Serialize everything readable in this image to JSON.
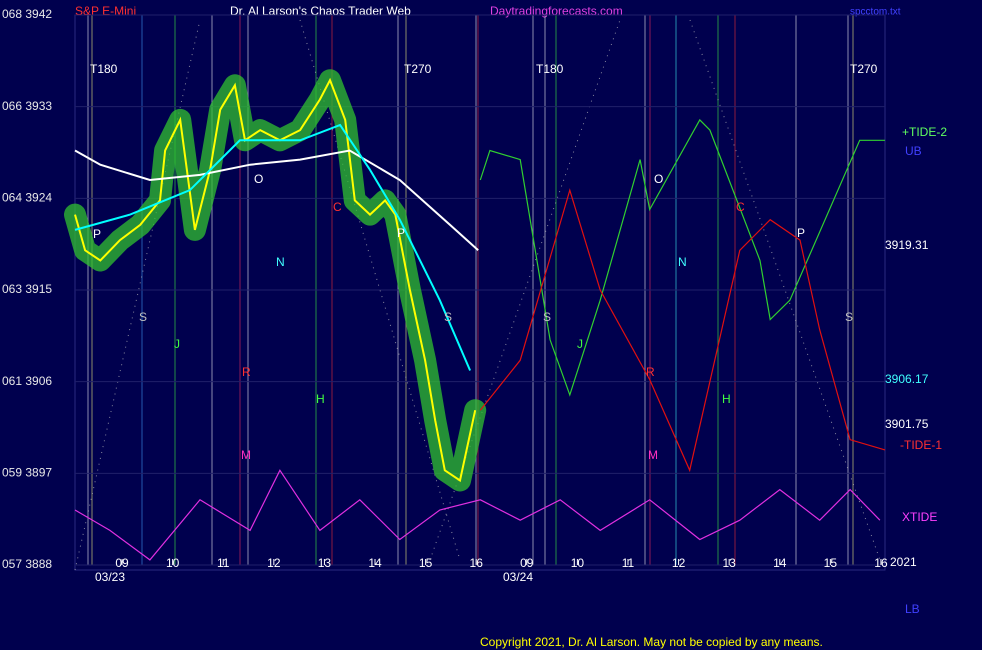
{
  "chart_data": {
    "type": "line",
    "title": "Dr. Al Larson's Chaos Trader Web",
    "instrument": "S&P E-Mini",
    "site": "Daytradingforecasts.com",
    "file": "spcctom.txt",
    "copyright": "Copyright 2021, Dr. Al Larson. May not be copied by any means.",
    "dates": [
      "03/23",
      "03/24"
    ],
    "xlim": [
      -0.93,
      15.08
    ],
    "ylim": [
      3888,
      3942
    ],
    "xticks": [
      {
        "value": 0,
        "label": "09"
      },
      {
        "value": 1,
        "label": "10"
      },
      {
        "value": 2,
        "label": "11"
      },
      {
        "value": 3,
        "label": "12"
      },
      {
        "value": 4,
        "label": "13"
      },
      {
        "value": 5,
        "label": "14"
      },
      {
        "value": 6,
        "label": "15"
      },
      {
        "value": 7,
        "label": "16"
      },
      {
        "value": 8,
        "label": "09"
      },
      {
        "value": 9,
        "label": "10"
      },
      {
        "value": 10,
        "label": "11"
      },
      {
        "value": 11,
        "label": "12"
      },
      {
        "value": 12,
        "label": "13"
      },
      {
        "value": 13,
        "label": "14"
      },
      {
        "value": 14,
        "label": "15"
      },
      {
        "value": 15,
        "label": "16"
      }
    ],
    "yticks": [
      {
        "value": 3942,
        "label": "068  3942"
      },
      {
        "value": 3933,
        "label": "066  3933"
      },
      {
        "value": 3924,
        "label": "064  3924"
      },
      {
        "value": 3915,
        "label": "063  3915"
      },
      {
        "value": 3906,
        "label": "061  3906"
      },
      {
        "value": 3897,
        "label": "059  3897"
      },
      {
        "value": 3888,
        "label": "057  3888"
      }
    ],
    "grid": true,
    "series": [
      {
        "name": "Price",
        "color": "#ffff00",
        "x": [
          -0.93,
          -0.73,
          -0.43,
          -0.04,
          0.36,
          0.75,
          0.85,
          1.15,
          1.44,
          1.74,
          1.94,
          2.23,
          2.43,
          2.73,
          3.12,
          3.52,
          3.91,
          4.11,
          4.41,
          4.6,
          4.9,
          5.2,
          5.4,
          5.69,
          5.99,
          6.19,
          6.38,
          6.68,
          6.98
        ],
        "values": [
          3922.4,
          3918.9,
          3917.9,
          3919.9,
          3921.4,
          3923.8,
          3928.7,
          3931.7,
          3920.9,
          3926.8,
          3932.7,
          3935.1,
          3929.7,
          3930.7,
          3929.7,
          3930.7,
          3933.7,
          3935.6,
          3931.7,
          3923.8,
          3922.4,
          3923.8,
          3922.4,
          3915.0,
          3908.1,
          3902.2,
          3897.3,
          3896.3,
          3903.2
        ]
      },
      {
        "name": "Slow Average",
        "color": "#ffffff",
        "x": [
          -0.93,
          -0.43,
          0.55,
          1.54,
          2.53,
          3.52,
          4.5,
          5.49,
          6.48,
          7.04
        ],
        "values": [
          3928.7,
          3927.3,
          3925.8,
          3926.3,
          3927.3,
          3927.8,
          3928.7,
          3925.8,
          3921.4,
          3918.9
        ]
      },
      {
        "name": "Fast Average",
        "color": "#00ffff",
        "x": [
          -0.93,
          0.16,
          1.34,
          2.33,
          3.52,
          4.31,
          4.9,
          5.49,
          6.28,
          6.88
        ],
        "values": [
          3920.9,
          3922.4,
          3924.8,
          3929.7,
          3929.7,
          3931.2,
          3926.8,
          3921.9,
          3914.0,
          3907.1
        ]
      },
      {
        "name": "+TIDE-2",
        "color": "#30d030",
        "x": [
          7.08,
          7.27,
          7.87,
          8.46,
          8.85,
          9.45,
          10.24,
          10.43,
          11.42,
          11.62,
          12.61,
          12.81,
          13.2,
          14.58,
          15.08
        ],
        "values": [
          3925.8,
          3928.7,
          3927.8,
          3910.1,
          3904.7,
          3914.0,
          3927.8,
          3922.9,
          3931.7,
          3930.7,
          3917.9,
          3912.1,
          3914.0,
          3929.7,
          3929.7
        ]
      },
      {
        "name": "-TIDE-1",
        "color": "#e01010",
        "x": [
          7.08,
          7.87,
          8.85,
          9.45,
          10.43,
          11.22,
          12.21,
          12.81,
          13.4,
          13.79,
          14.39,
          15.08
        ],
        "values": [
          3903.2,
          3908.1,
          3924.8,
          3915.0,
          3906.2,
          3897.3,
          3918.9,
          3921.9,
          3919.9,
          3911.1,
          3900.3,
          3899.3
        ]
      },
      {
        "name": "XTIDE",
        "color": "#e030e0",
        "x": [
          -0.93,
          -0.24,
          0.55,
          1.54,
          2.53,
          3.12,
          3.91,
          4.7,
          5.49,
          6.28,
          7.08,
          7.87,
          8.66,
          9.45,
          10.43,
          11.42,
          12.21,
          13.0,
          13.79,
          14.39,
          14.98
        ],
        "values": [
          3893.4,
          3891.4,
          3888.5,
          3894.4,
          3891.4,
          3897.3,
          3891.4,
          3894.4,
          3890.5,
          3893.4,
          3894.4,
          3892.4,
          3894.4,
          3891.4,
          3894.4,
          3890.5,
          3892.4,
          3895.4,
          3892.4,
          3895.4,
          3892.4
        ]
      }
    ],
    "annotations": [
      "T180",
      "T270",
      "T180",
      "T270",
      "O",
      "N",
      "S",
      "J",
      "R",
      "M",
      "H",
      "C",
      "P",
      "P",
      "S",
      "S",
      "J",
      "O",
      "N",
      "R",
      "M",
      "H",
      "C",
      "P",
      "S"
    ],
    "right_labels": [
      "+TIDE-2",
      "UB",
      "3919.31",
      "3906.17",
      "3901.75",
      "-TIDE-1",
      "XTIDE",
      "2021",
      "LB"
    ]
  }
}
